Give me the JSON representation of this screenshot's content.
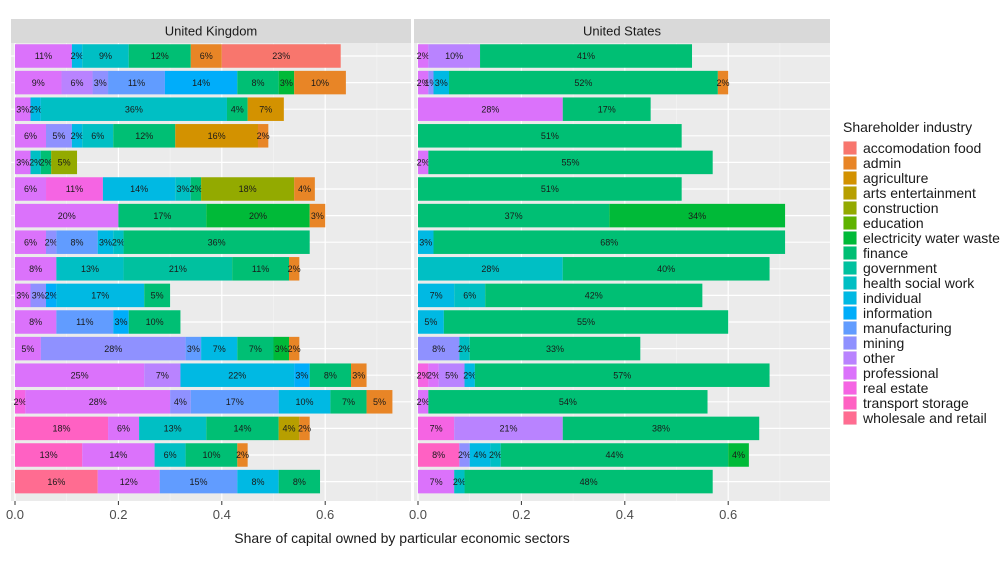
{
  "chart_data": {
    "type": "bar",
    "orientation": "horizontal",
    "stacked": true,
    "xlabel": "Share of capital owned by particular economic sectors",
    "xticks": [
      "0.0",
      "0.2",
      "0.4",
      "0.6"
    ],
    "xlim": [
      0,
      0.74
    ],
    "grid": true,
    "legend": {
      "title": "Shareholder industry",
      "position": "right",
      "items": [
        {
          "name": "accomodation food",
          "color": "#F8766D"
        },
        {
          "name": "admin",
          "color": "#E88526"
        },
        {
          "name": "agriculture",
          "color": "#D39200"
        },
        {
          "name": "arts entertainment",
          "color": "#B79F00"
        },
        {
          "name": "construction",
          "color": "#93AA00"
        },
        {
          "name": "education",
          "color": "#5EB300"
        },
        {
          "name": "electricity water waste",
          "color": "#00BA38"
        },
        {
          "name": "finance",
          "color": "#00BF74"
        },
        {
          "name": "government",
          "color": "#00C19F"
        },
        {
          "name": "health social work",
          "color": "#00BFC4"
        },
        {
          "name": "individual",
          "color": "#00B9E3"
        },
        {
          "name": "information",
          "color": "#00ADFA"
        },
        {
          "name": "manufacturing",
          "color": "#619CFF"
        },
        {
          "name": "mining",
          "color": "#8F91FF"
        },
        {
          "name": "other",
          "color": "#B983FF"
        },
        {
          "name": "professional",
          "color": "#DB72FB"
        },
        {
          "name": "real estate",
          "color": "#F564E3"
        },
        {
          "name": "transport storage",
          "color": "#FF61C3"
        },
        {
          "name": "wholesale and retail",
          "color": "#FF6C91"
        }
      ]
    },
    "panels": [
      {
        "title": "United Kingdom",
        "rows": [
          [
            {
              "industry": "professional",
              "value": 0.11
            },
            {
              "industry": "individual",
              "value": 0.02
            },
            {
              "industry": "health social work",
              "value": 0.09
            },
            {
              "industry": "finance",
              "value": 0.12
            },
            {
              "industry": "admin",
              "value": 0.06
            },
            {
              "industry": "accomodation food",
              "value": 0.23
            }
          ],
          [
            {
              "industry": "professional",
              "value": 0.09
            },
            {
              "industry": "other",
              "value": 0.06
            },
            {
              "industry": "mining",
              "value": 0.03
            },
            {
              "industry": "manufacturing",
              "value": 0.11
            },
            {
              "industry": "information",
              "value": 0.14
            },
            {
              "industry": "finance",
              "value": 0.08
            },
            {
              "industry": "electricity water waste",
              "value": 0.03
            },
            {
              "industry": "admin",
              "value": 0.1
            }
          ],
          [
            {
              "industry": "professional",
              "value": 0.03
            },
            {
              "industry": "individual",
              "value": 0.02
            },
            {
              "industry": "health social work",
              "value": 0.36
            },
            {
              "industry": "finance",
              "value": 0.04
            },
            {
              "industry": "agriculture",
              "value": 0.07
            }
          ],
          [
            {
              "industry": "professional",
              "value": 0.06
            },
            {
              "industry": "mining",
              "value": 0.05
            },
            {
              "industry": "individual",
              "value": 0.02
            },
            {
              "industry": "health social work",
              "value": 0.06
            },
            {
              "industry": "finance",
              "value": 0.12
            },
            {
              "industry": "agriculture",
              "value": 0.16
            },
            {
              "industry": "admin",
              "value": 0.02
            }
          ],
          [
            {
              "industry": "professional",
              "value": 0.03
            },
            {
              "industry": "health social work",
              "value": 0.02
            },
            {
              "industry": "finance",
              "value": 0.02
            },
            {
              "industry": "construction",
              "value": 0.05
            }
          ],
          [
            {
              "industry": "professional",
              "value": 0.06
            },
            {
              "industry": "real estate",
              "value": 0.11
            },
            {
              "industry": "individual",
              "value": 0.14
            },
            {
              "industry": "health social work",
              "value": 0.03
            },
            {
              "industry": "finance",
              "value": 0.02
            },
            {
              "industry": "construction",
              "value": 0.18
            },
            {
              "industry": "admin",
              "value": 0.04
            }
          ],
          [
            {
              "industry": "professional",
              "value": 0.2
            },
            {
              "industry": "finance",
              "value": 0.17
            },
            {
              "industry": "electricity water waste",
              "value": 0.2
            },
            {
              "industry": "admin",
              "value": 0.03
            }
          ],
          [
            {
              "industry": "professional",
              "value": 0.06
            },
            {
              "industry": "mining",
              "value": 0.02
            },
            {
              "industry": "manufacturing",
              "value": 0.08
            },
            {
              "industry": "individual",
              "value": 0.03
            },
            {
              "industry": "health social work",
              "value": 0.02
            },
            {
              "industry": "finance",
              "value": 0.36
            }
          ],
          [
            {
              "industry": "professional",
              "value": 0.08
            },
            {
              "industry": "health social work",
              "value": 0.13
            },
            {
              "industry": "government",
              "value": 0.21
            },
            {
              "industry": "finance",
              "value": 0.11
            },
            {
              "industry": "admin",
              "value": 0.02
            }
          ],
          [
            {
              "industry": "professional",
              "value": 0.03
            },
            {
              "industry": "mining",
              "value": 0.03
            },
            {
              "industry": "information",
              "value": 0.02
            },
            {
              "industry": "individual",
              "value": 0.17
            },
            {
              "industry": "finance",
              "value": 0.05
            }
          ],
          [
            {
              "industry": "professional",
              "value": 0.08
            },
            {
              "industry": "manufacturing",
              "value": 0.11
            },
            {
              "industry": "information",
              "value": 0.03
            },
            {
              "industry": "finance",
              "value": 0.1
            }
          ],
          [
            {
              "industry": "professional",
              "value": 0.05
            },
            {
              "industry": "mining",
              "value": 0.28
            },
            {
              "industry": "manufacturing",
              "value": 0.03
            },
            {
              "industry": "individual",
              "value": 0.07
            },
            {
              "industry": "finance",
              "value": 0.07
            },
            {
              "industry": "electricity water waste",
              "value": 0.03
            },
            {
              "industry": "admin",
              "value": 0.02
            }
          ],
          [
            {
              "industry": "professional",
              "value": 0.25
            },
            {
              "industry": "other",
              "value": 0.07
            },
            {
              "industry": "individual",
              "value": 0.22
            },
            {
              "industry": "information",
              "value": 0.03
            },
            {
              "industry": "finance",
              "value": 0.08
            },
            {
              "industry": "admin",
              "value": 0.03
            }
          ],
          [
            {
              "industry": "real estate",
              "value": 0.02
            },
            {
              "industry": "professional",
              "value": 0.28
            },
            {
              "industry": "mining",
              "value": 0.04
            },
            {
              "industry": "manufacturing",
              "value": 0.17
            },
            {
              "industry": "individual",
              "value": 0.1
            },
            {
              "industry": "finance",
              "value": 0.07
            },
            {
              "industry": "admin",
              "value": 0.05
            }
          ],
          [
            {
              "industry": "transport storage",
              "value": 0.18
            },
            {
              "industry": "professional",
              "value": 0.06
            },
            {
              "industry": "health social work",
              "value": 0.13
            },
            {
              "industry": "finance",
              "value": 0.14
            },
            {
              "industry": "arts entertainment",
              "value": 0.04
            },
            {
              "industry": "admin",
              "value": 0.02
            }
          ],
          [
            {
              "industry": "transport storage",
              "value": 0.13
            },
            {
              "industry": "professional",
              "value": 0.14
            },
            {
              "industry": "health social work",
              "value": 0.06
            },
            {
              "industry": "finance",
              "value": 0.1
            },
            {
              "industry": "admin",
              "value": 0.02
            }
          ],
          [
            {
              "industry": "wholesale and retail",
              "value": 0.16
            },
            {
              "industry": "professional",
              "value": 0.12
            },
            {
              "industry": "manufacturing",
              "value": 0.15
            },
            {
              "industry": "individual",
              "value": 0.08
            },
            {
              "industry": "finance",
              "value": 0.08
            }
          ]
        ]
      },
      {
        "title": "United States",
        "rows": [
          [
            {
              "industry": "professional",
              "value": 0.02
            },
            {
              "industry": "other",
              "value": 0.1
            },
            {
              "industry": "finance",
              "value": 0.41
            }
          ],
          [
            {
              "industry": "professional",
              "value": 0.02
            },
            {
              "industry": "mining",
              "value": 0.01
            },
            {
              "industry": "individual",
              "value": 0.03
            },
            {
              "industry": "finance",
              "value": 0.52
            },
            {
              "industry": "admin",
              "value": 0.02
            }
          ],
          [
            {
              "industry": "professional",
              "value": 0.28
            },
            {
              "industry": "finance",
              "value": 0.17
            }
          ],
          [
            {
              "industry": "finance",
              "value": 0.51
            }
          ],
          [
            {
              "industry": "professional",
              "value": 0.02
            },
            {
              "industry": "finance",
              "value": 0.55
            }
          ],
          [
            {
              "industry": "finance",
              "value": 0.51
            }
          ],
          [
            {
              "industry": "finance",
              "value": 0.37
            },
            {
              "industry": "electricity water waste",
              "value": 0.34
            }
          ],
          [
            {
              "industry": "individual",
              "value": 0.03
            },
            {
              "industry": "finance",
              "value": 0.68
            }
          ],
          [
            {
              "industry": "health social work",
              "value": 0.28
            },
            {
              "industry": "finance",
              "value": 0.4
            }
          ],
          [
            {
              "industry": "individual",
              "value": 0.07
            },
            {
              "industry": "health social work",
              "value": 0.06
            },
            {
              "industry": "finance",
              "value": 0.42
            }
          ],
          [
            {
              "industry": "individual",
              "value": 0.05
            },
            {
              "industry": "finance",
              "value": 0.55
            }
          ],
          [
            {
              "industry": "mining",
              "value": 0.08
            },
            {
              "industry": "health social work",
              "value": 0.02
            },
            {
              "industry": "finance",
              "value": 0.33
            }
          ],
          [
            {
              "industry": "real estate",
              "value": 0.02
            },
            {
              "industry": "professional",
              "value": 0.02
            },
            {
              "industry": "other",
              "value": 0.05
            },
            {
              "industry": "individual",
              "value": 0.02
            },
            {
              "industry": "finance",
              "value": 0.57
            }
          ],
          [
            {
              "industry": "professional",
              "value": 0.02
            },
            {
              "industry": "finance",
              "value": 0.54
            }
          ],
          [
            {
              "industry": "real estate",
              "value": 0.07
            },
            {
              "industry": "other",
              "value": 0.21
            },
            {
              "industry": "finance",
              "value": 0.38
            }
          ],
          [
            {
              "industry": "transport storage",
              "value": 0.08
            },
            {
              "industry": "mining",
              "value": 0.02
            },
            {
              "industry": "individual",
              "value": 0.04
            },
            {
              "industry": "health social work",
              "value": 0.02
            },
            {
              "industry": "finance",
              "value": 0.44
            },
            {
              "industry": "electricity water waste",
              "value": 0.04
            }
          ],
          [
            {
              "industry": "professional",
              "value": 0.07
            },
            {
              "industry": "health social work",
              "value": 0.02
            },
            {
              "industry": "finance",
              "value": 0.48
            }
          ]
        ]
      }
    ]
  }
}
